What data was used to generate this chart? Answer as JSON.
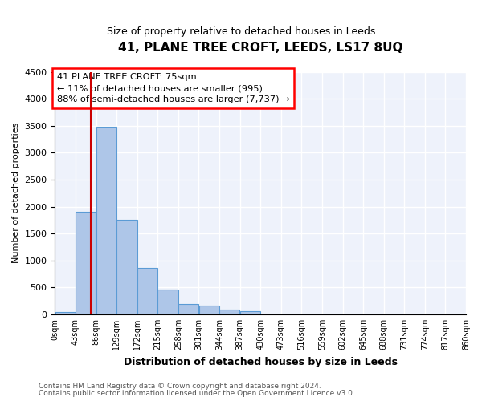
{
  "title": "41, PLANE TREE CROFT, LEEDS, LS17 8UQ",
  "subtitle": "Size of property relative to detached houses in Leeds",
  "xlabel": "Distribution of detached houses by size in Leeds",
  "ylabel": "Number of detached properties",
  "bar_color": "#aec6e8",
  "bar_edge_color": "#5b9bd5",
  "background_color": "#eef2fb",
  "grid_color": "#ffffff",
  "bin_edges": [
    0,
    43,
    86,
    129,
    172,
    215,
    258,
    301,
    344,
    387,
    430,
    473,
    516,
    559,
    602,
    645,
    688,
    731,
    774,
    817,
    860
  ],
  "bin_labels": [
    "0sqm",
    "43sqm",
    "86sqm",
    "129sqm",
    "172sqm",
    "215sqm",
    "258sqm",
    "301sqm",
    "344sqm",
    "387sqm",
    "430sqm",
    "473sqm",
    "516sqm",
    "559sqm",
    "602sqm",
    "645sqm",
    "688sqm",
    "731sqm",
    "774sqm",
    "817sqm",
    "860sqm"
  ],
  "bar_heights": [
    50,
    1900,
    3480,
    1760,
    860,
    460,
    185,
    160,
    85,
    55,
    0,
    0,
    0,
    0,
    0,
    0,
    0,
    0,
    0,
    0
  ],
  "ylim": [
    0,
    4500
  ],
  "yticks": [
    0,
    500,
    1000,
    1500,
    2000,
    2500,
    3000,
    3500,
    4000,
    4500
  ],
  "vline_x": 75,
  "vline_color": "#cc0000",
  "annotation_line1": "41 PLANE TREE CROFT: 75sqm",
  "annotation_line2": "← 11% of detached houses are smaller (995)",
  "annotation_line3": "88% of semi-detached houses are larger (7,737) →",
  "footer_line1": "Contains HM Land Registry data © Crown copyright and database right 2024.",
  "footer_line2": "Contains public sector information licensed under the Open Government Licence v3.0."
}
